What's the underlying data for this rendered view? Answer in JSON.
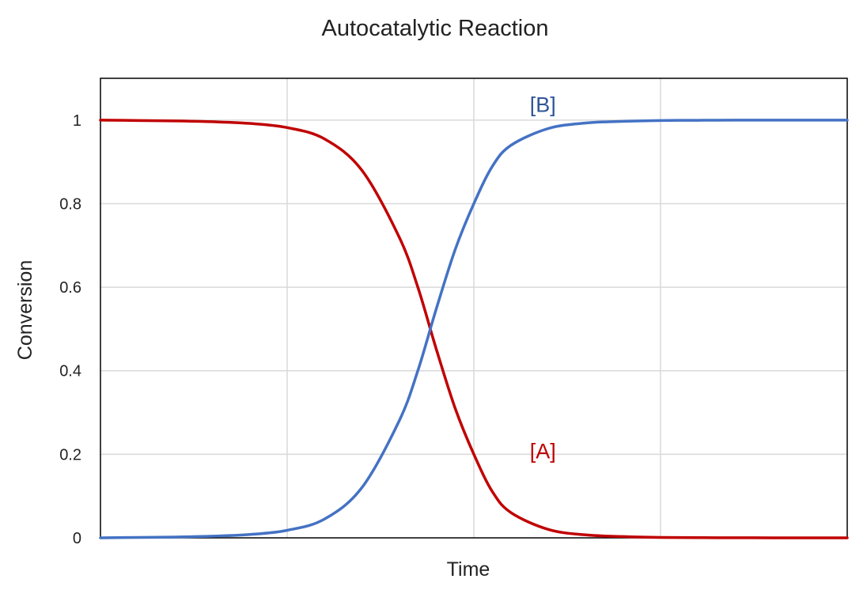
{
  "chart_data": {
    "type": "line",
    "title": "Autocatalytic Reaction",
    "xlabel": "Time",
    "ylabel": "Conversion",
    "xlim": [
      0,
      1
    ],
    "ylim": [
      0,
      1.1
    ],
    "yticks": [
      "0",
      "0.2",
      "0.4",
      "0.6",
      "0.8",
      "1"
    ],
    "ytick_values": [
      0,
      0.2,
      0.4,
      0.6,
      0.8,
      1
    ],
    "x_gridlines": [
      0.25,
      0.5,
      0.75
    ],
    "grid": true,
    "legend": "none",
    "x": [
      0,
      0.05,
      0.1,
      0.15,
      0.2,
      0.25,
      0.3,
      0.35,
      0.4,
      0.425,
      0.45,
      0.475,
      0.5,
      0.525,
      0.55,
      0.6,
      0.65,
      0.7,
      0.75,
      0.8,
      0.85,
      0.9,
      0.95,
      1.0
    ],
    "series": [
      {
        "name": "[A]",
        "color": "#c00000",
        "values": [
          1.0,
          0.999,
          0.998,
          0.996,
          0.992,
          0.982,
          0.955,
          0.88,
          0.72,
          0.6,
          0.45,
          0.31,
          0.2,
          0.11,
          0.06,
          0.02,
          0.007,
          0.003,
          0.001,
          0.0005,
          0.0002,
          0.0001,
          0.0,
          0.0
        ]
      },
      {
        "name": "[B]",
        "color": "#4472c4",
        "values": [
          0.0,
          0.001,
          0.002,
          0.004,
          0.008,
          0.018,
          0.045,
          0.12,
          0.28,
          0.4,
          0.55,
          0.69,
          0.8,
          0.89,
          0.94,
          0.98,
          0.993,
          0.997,
          0.999,
          0.9995,
          0.9998,
          0.9999,
          1.0,
          1.0
        ]
      }
    ],
    "annotations": [
      {
        "text": "[B]",
        "x": 0.575,
        "y": 1.02,
        "color": "#2f5597"
      },
      {
        "text": "[A]",
        "x": 0.575,
        "y": 0.19,
        "color": "#c00000"
      }
    ]
  }
}
